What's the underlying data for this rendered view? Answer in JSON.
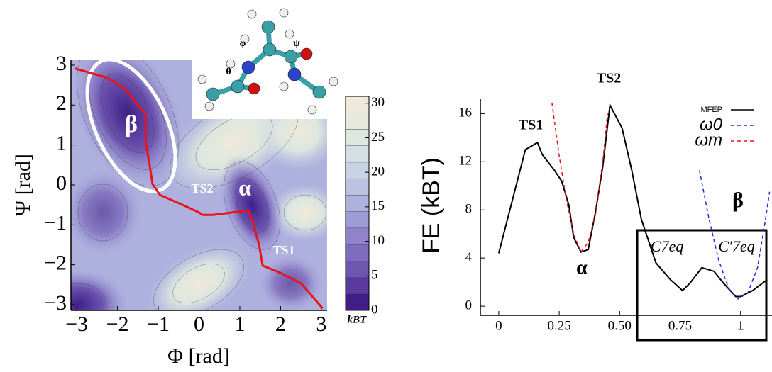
{
  "chart_data": [
    {
      "type": "contour",
      "xlabel": "Φ [rad]",
      "ylabel": "Ψ [rad]",
      "xlim": [
        -3.1416,
        3.1416
      ],
      "ylim": [
        -3.1416,
        3.1416
      ],
      "xticks": [
        {
          "value": -3,
          "label": "−3"
        },
        {
          "value": -2,
          "label": "−2"
        },
        {
          "value": -1,
          "label": "−1"
        },
        0,
        1,
        2,
        3
      ],
      "yticks": [
        {
          "value": -3,
          "label": "−3"
        },
        {
          "value": -2,
          "label": "−2"
        },
        {
          "value": -1,
          "label": "−1"
        },
        0,
        1,
        2,
        3
      ],
      "colorbar": {
        "label": "kBT",
        "lim": [
          0,
          31
        ],
        "ticks": [
          0,
          5,
          10,
          15,
          20,
          25,
          30
        ],
        "colors": [
          "#3f1f86",
          "#5a3a9e",
          "#6d55b0",
          "#7e6cbf",
          "#8f84cb",
          "#9f9bd6",
          "#aeb0de",
          "#bcc3e2",
          "#c8d3e4",
          "#d3dfe3",
          "#dde6df",
          "#e6e9dc",
          "#eeeadb"
        ]
      },
      "path": {
        "color": "#e8141c",
        "x": [
          -3.05,
          -2.27,
          -1.83,
          -1.48,
          -1.31,
          -1.31,
          -1.22,
          -1.14,
          -0.96,
          -0.36,
          0.0,
          0.08,
          0.34,
          1.21,
          1.3,
          1.47,
          1.56,
          1.99,
          2.51,
          3.03
        ],
        "y": [
          2.92,
          2.69,
          2.42,
          1.97,
          1.79,
          1.08,
          0.55,
          0.02,
          -0.25,
          -0.52,
          -0.69,
          -0.75,
          -0.75,
          -0.64,
          -0.87,
          -1.49,
          -2.02,
          -2.2,
          -2.47,
          -3.09
        ]
      },
      "annotations": [
        "β",
        "α",
        "TS2",
        "TS1",
        "φ",
        "ψ",
        "θ"
      ]
    },
    {
      "type": "line",
      "ylabel": "FE (kBT)",
      "xlim": [
        -0.076,
        1.13
      ],
      "ylim": [
        -0.76,
        17.2
      ],
      "xticks": [
        0,
        0.25,
        {
          "value": 0.5,
          "label": "0.50"
        },
        0.75,
        1
      ],
      "yticks": [
        0,
        4,
        8,
        12,
        16
      ],
      "series": [
        {
          "name": "MFEP",
          "color": "#000000",
          "dash": false,
          "x": [
            0,
            0.11,
            0.16,
            0.18,
            0.23,
            0.26,
            0.29,
            0.31,
            0.34,
            0.37,
            0.4,
            0.43,
            0.46,
            0.51,
            0.55,
            0.59,
            0.65,
            0.71,
            0.76,
            0.79,
            0.84,
            0.89,
            0.93,
            0.98,
            1.0,
            1.05,
            1.11
          ],
          "values": [
            4.4,
            13.0,
            13.6,
            12.6,
            11.3,
            10.4,
            8.4,
            5.7,
            4.5,
            4.7,
            7.8,
            11.6,
            16.7,
            14.8,
            11.3,
            7.2,
            3.6,
            2.2,
            1.3,
            1.9,
            3.2,
            2.9,
            1.9,
            0.8,
            0.8,
            1.3,
            2.2
          ]
        },
        {
          "name": "ω0",
          "color": "#1f2fe0",
          "dash": true,
          "x": [
            0.83,
            0.87,
            0.91,
            0.95,
            0.99,
            1.03,
            1.07,
            1.1,
            1.12
          ],
          "values": [
            11.3,
            7.2,
            3.8,
            1.5,
            0.6,
            1.1,
            3.2,
            6.8,
            9.5
          ]
        },
        {
          "name": "ωm",
          "color": "#e8141c",
          "dash": true,
          "x": [
            0.22,
            0.25,
            0.28,
            0.31,
            0.34,
            0.37,
            0.4,
            0.43,
            0.45
          ],
          "values": [
            16.9,
            12.5,
            8.8,
            6.0,
            4.5,
            5.3,
            7.6,
            12.0,
            16.0
          ]
        }
      ],
      "annotations": [
        "TS1",
        "TS2",
        "α",
        "β",
        "C7eq",
        "C′7eq"
      ]
    }
  ]
}
